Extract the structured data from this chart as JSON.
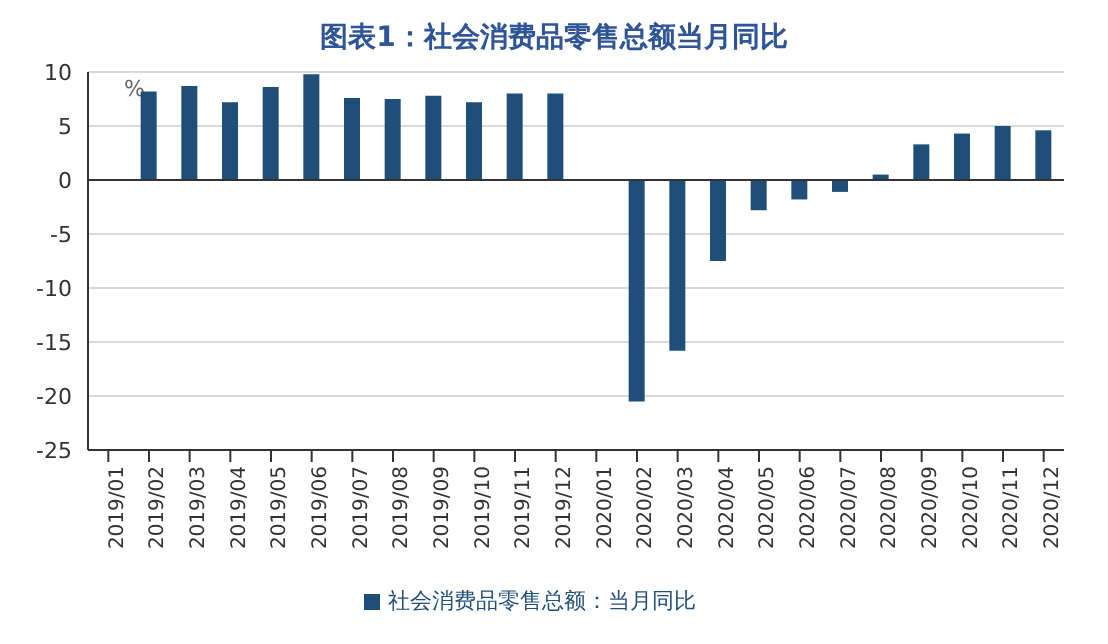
{
  "chart_data": {
    "type": "bar",
    "title": "图表1：社会消费品零售总额当月同比",
    "ylabel": "%",
    "categories": [
      "2019/01",
      "2019/02",
      "2019/03",
      "2019/04",
      "2019/05",
      "2019/06",
      "2019/07",
      "2019/08",
      "2019/09",
      "2019/10",
      "2019/11",
      "2019/12",
      "2020/01",
      "2020/02",
      "2020/03",
      "2020/04",
      "2020/05",
      "2020/06",
      "2020/07",
      "2020/08",
      "2020/09",
      "2020/10",
      "2020/11",
      "2020/12"
    ],
    "series": [
      {
        "name": "社会消费品零售总额：当月同比",
        "color": "#1f4e79",
        "values": [
          null,
          8.2,
          8.7,
          7.2,
          8.6,
          9.8,
          7.6,
          7.5,
          7.8,
          7.2,
          8.0,
          8.0,
          null,
          -20.5,
          -15.8,
          -7.5,
          -2.8,
          -1.8,
          -1.1,
          0.5,
          3.3,
          4.3,
          5.0,
          4.6
        ]
      }
    ],
    "ylim": [
      -25,
      10
    ],
    "yticks": [
      -25,
      -20,
      -15,
      -10,
      -5,
      0,
      5,
      10
    ],
    "grid": "y",
    "legend": "bottom"
  }
}
